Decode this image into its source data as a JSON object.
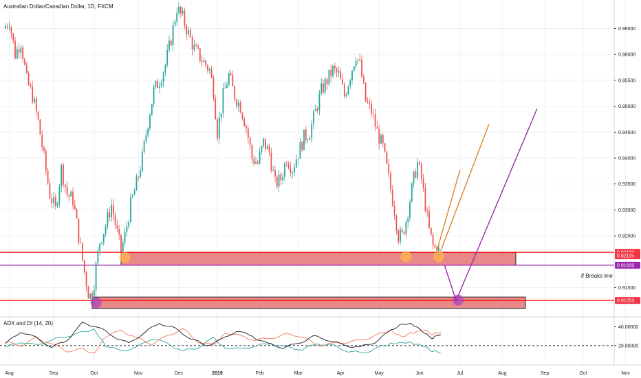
{
  "chart_title": "Australian Dollar/Canadian Dollar, 1D, FXCM",
  "annotation_text": "if Breaks line",
  "price_axis": {
    "ticks": [
      "0.96500",
      "0.96000",
      "0.95500",
      "0.95000",
      "0.94500",
      "0.94000",
      "0.93500",
      "0.93000",
      "0.92500",
      "0.91500"
    ],
    "ylim": [
      0.9095,
      0.9705
    ]
  },
  "price_badges": [
    {
      "value": 0.92182,
      "label": "0.92182",
      "color": "#f23645"
    },
    {
      "value": 0.92115,
      "label": "0.92115",
      "color": "#f23645"
    },
    {
      "value": 0.91933,
      "label": "0.91933",
      "color": "#9c27b0"
    },
    {
      "value": 0.91253,
      "label": "0.91253",
      "color": "#f23645"
    }
  ],
  "time_axis": [
    {
      "label": "Aug",
      "bar": 2
    },
    {
      "label": "Sep",
      "bar": 25
    },
    {
      "label": "Oct",
      "bar": 46
    },
    {
      "label": "Nov",
      "bar": 69
    },
    {
      "label": "Dec",
      "bar": 90
    },
    {
      "label": "2019",
      "bar": 110,
      "bold": true
    },
    {
      "label": "Feb",
      "bar": 132
    },
    {
      "label": "Mar",
      "bar": 152
    },
    {
      "label": "Apr",
      "bar": 174
    },
    {
      "label": "May",
      "bar": 194
    },
    {
      "label": "Jun",
      "bar": 215
    },
    {
      "label": "Jul",
      "bar": 236
    },
    {
      "label": "Aug",
      "bar": 258
    },
    {
      "label": "Sep",
      "bar": 280
    },
    {
      "label": "Oct",
      "bar": 300
    },
    {
      "label": "Nov",
      "bar": 322
    }
  ],
  "indicator": {
    "title": "ADX and DI (14, 20)",
    "ticks": [
      "40.00000",
      "20.00000"
    ],
    "ylim": [
      0,
      50
    ],
    "threshold": 20
  },
  "colors": {
    "up": "#26a69a",
    "down": "#ef5350",
    "support_fill": "#e57373",
    "support_line": "#ff0000",
    "purple": "#9c27b0",
    "orange": "#d9822b",
    "highlight_orange": "#ffb74d",
    "highlight_purple": "#ab47bc",
    "adx": "#131722",
    "di_plus": "#ef7b5a",
    "di_minus": "#26a69a",
    "grid": "#eef0f3"
  },
  "chart_data": {
    "type": "candlestick",
    "title": "Australian Dollar/Canadian Dollar, 1D, FXCM",
    "x_unit": "trading day index (0 = late July 2018)",
    "ylim": [
      0.9095,
      0.9705
    ],
    "anchors": [
      [
        0,
        0.965
      ],
      [
        3,
        0.9665
      ],
      [
        6,
        0.96
      ],
      [
        9,
        0.9625
      ],
      [
        12,
        0.955
      ],
      [
        15,
        0.952
      ],
      [
        18,
        0.947
      ],
      [
        21,
        0.94
      ],
      [
        24,
        0.933
      ],
      [
        27,
        0.93
      ],
      [
        30,
        0.938
      ],
      [
        33,
        0.933
      ],
      [
        36,
        0.932
      ],
      [
        39,
        0.925
      ],
      [
        42,
        0.918
      ],
      [
        44,
        0.914
      ],
      [
        46,
        0.913
      ],
      [
        48,
        0.919
      ],
      [
        50,
        0.924
      ],
      [
        53,
        0.927
      ],
      [
        56,
        0.931
      ],
      [
        59,
        0.9255
      ],
      [
        61,
        0.922
      ],
      [
        63,
        0.925
      ],
      [
        66,
        0.931
      ],
      [
        69,
        0.935
      ],
      [
        72,
        0.94
      ],
      [
        75,
        0.947
      ],
      [
        78,
        0.953
      ],
      [
        81,
        0.955
      ],
      [
        84,
        0.958
      ],
      [
        87,
        0.963
      ],
      [
        90,
        0.969
      ],
      [
        93,
        0.967
      ],
      [
        96,
        0.964
      ],
      [
        99,
        0.961
      ],
      [
        102,
        0.9595
      ],
      [
        105,
        0.958
      ],
      [
        107,
        0.957
      ],
      [
        109,
        0.953
      ],
      [
        111,
        0.945
      ],
      [
        114,
        0.952
      ],
      [
        117,
        0.956
      ],
      [
        120,
        0.952
      ],
      [
        123,
        0.95
      ],
      [
        126,
        0.946
      ],
      [
        129,
        0.94
      ],
      [
        132,
        0.939
      ],
      [
        135,
        0.943
      ],
      [
        138,
        0.941
      ],
      [
        141,
        0.935
      ],
      [
        144,
        0.936
      ],
      [
        147,
        0.94
      ],
      [
        150,
        0.938
      ],
      [
        153,
        0.941
      ],
      [
        156,
        0.944
      ],
      [
        159,
        0.945
      ],
      [
        162,
        0.949
      ],
      [
        165,
        0.953
      ],
      [
        168,
        0.955
      ],
      [
        171,
        0.957
      ],
      [
        174,
        0.956
      ],
      [
        177,
        0.952
      ],
      [
        180,
        0.956
      ],
      [
        183,
        0.96
      ],
      [
        185,
        0.958
      ],
      [
        188,
        0.951
      ],
      [
        191,
        0.949
      ],
      [
        194,
        0.945
      ],
      [
        197,
        0.942
      ],
      [
        200,
        0.936
      ],
      [
        203,
        0.93
      ],
      [
        205,
        0.925
      ],
      [
        207,
        0.925
      ],
      [
        209,
        0.928
      ],
      [
        211,
        0.932
      ],
      [
        213,
        0.936
      ],
      [
        215,
        0.939
      ],
      [
        217,
        0.936
      ],
      [
        219,
        0.931
      ],
      [
        221,
        0.926
      ],
      [
        223,
        0.923
      ],
      [
        225,
        0.9221
      ]
    ],
    "supports": [
      {
        "from_bar": 60,
        "to_bar": 265,
        "low": 0.9193,
        "high": 0.9218
      },
      {
        "from_bar": 45,
        "to_bar": 270,
        "low": 0.911,
        "high": 0.9132
      }
    ],
    "horizontal_lines": [
      {
        "value": 0.92182,
        "color": "red"
      },
      {
        "value": 0.91253,
        "color": "red"
      },
      {
        "value": 0.91933,
        "color": "purple"
      }
    ],
    "projections": [
      {
        "color": "orange",
        "points": [
          [
            224,
            0.9221
          ],
          [
            236,
            0.9377
          ]
        ]
      },
      {
        "color": "orange",
        "points": [
          [
            226,
            0.9221
          ],
          [
            251,
            0.9465
          ]
        ]
      },
      {
        "color": "purple",
        "points": [
          [
            228,
            0.9193
          ],
          [
            234,
            0.9125
          ],
          [
            276,
            0.9495
          ]
        ]
      }
    ],
    "highlights": [
      {
        "bar": 62,
        "value": 0.9208,
        "color": "orange"
      },
      {
        "bar": 208,
        "value": 0.921,
        "color": "orange"
      },
      {
        "bar": 225,
        "value": 0.921,
        "color": "orange"
      },
      {
        "bar": 47,
        "value": 0.9121,
        "color": "purple"
      },
      {
        "bar": 235,
        "value": 0.9126,
        "color": "purple"
      }
    ],
    "indicator": {
      "name": "ADX and DI (14, 20)",
      "threshold": 20,
      "adx": [
        [
          0,
          22
        ],
        [
          8,
          35
        ],
        [
          16,
          28
        ],
        [
          24,
          18
        ],
        [
          32,
          26
        ],
        [
          40,
          44
        ],
        [
          48,
          40
        ],
        [
          56,
          30
        ],
        [
          64,
          22
        ],
        [
          72,
          34
        ],
        [
          80,
          44
        ],
        [
          88,
          38
        ],
        [
          96,
          28
        ],
        [
          104,
          20
        ],
        [
          112,
          26
        ],
        [
          120,
          36
        ],
        [
          128,
          30
        ],
        [
          136,
          22
        ],
        [
          144,
          18
        ],
        [
          152,
          22
        ],
        [
          160,
          30
        ],
        [
          168,
          26
        ],
        [
          176,
          20
        ],
        [
          184,
          18
        ],
        [
          192,
          24
        ],
        [
          200,
          36
        ],
        [
          206,
          44
        ],
        [
          212,
          42
        ],
        [
          218,
          32
        ],
        [
          222,
          28
        ],
        [
          226,
          32
        ]
      ],
      "di_plus": [
        [
          0,
          24
        ],
        [
          8,
          20
        ],
        [
          16,
          28
        ],
        [
          24,
          22
        ],
        [
          32,
          14
        ],
        [
          40,
          16
        ],
        [
          46,
          12
        ],
        [
          52,
          30
        ],
        [
          60,
          36
        ],
        [
          68,
          28
        ],
        [
          76,
          22
        ],
        [
          84,
          30
        ],
        [
          92,
          38
        ],
        [
          100,
          24
        ],
        [
          108,
          20
        ],
        [
          114,
          34
        ],
        [
          122,
          30
        ],
        [
          130,
          26
        ],
        [
          138,
          28
        ],
        [
          146,
          32
        ],
        [
          154,
          30
        ],
        [
          162,
          20
        ],
        [
          170,
          22
        ],
        [
          178,
          24
        ],
        [
          186,
          26
        ],
        [
          194,
          32
        ],
        [
          200,
          36
        ],
        [
          206,
          30
        ],
        [
          212,
          34
        ],
        [
          218,
          36
        ],
        [
          222,
          32
        ],
        [
          226,
          34
        ]
      ],
      "di_minus": [
        [
          0,
          18
        ],
        [
          8,
          24
        ],
        [
          16,
          20
        ],
        [
          24,
          26
        ],
        [
          32,
          30
        ],
        [
          40,
          34
        ],
        [
          46,
          38
        ],
        [
          52,
          20
        ],
        [
          60,
          14
        ],
        [
          68,
          18
        ],
        [
          76,
          28
        ],
        [
          84,
          22
        ],
        [
          92,
          14
        ],
        [
          100,
          18
        ],
        [
          108,
          28
        ],
        [
          114,
          18
        ],
        [
          122,
          16
        ],
        [
          130,
          20
        ],
        [
          138,
          22
        ],
        [
          146,
          18
        ],
        [
          154,
          16
        ],
        [
          162,
          22
        ],
        [
          170,
          20
        ],
        [
          178,
          14
        ],
        [
          186,
          12
        ],
        [
          194,
          18
        ],
        [
          200,
          22
        ],
        [
          206,
          24
        ],
        [
          212,
          22
        ],
        [
          218,
          18
        ],
        [
          222,
          14
        ],
        [
          226,
          12
        ]
      ]
    }
  }
}
